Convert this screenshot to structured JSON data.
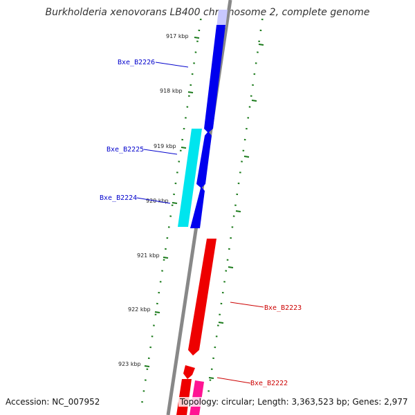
{
  "title": "Burkholderia xenovorans LB400 chromosome 2, complete genome",
  "ticks": [
    {
      "label": "917 kbp"
    },
    {
      "label": "918 kbp"
    },
    {
      "label": "919 kbp"
    },
    {
      "label": "920 kbp"
    },
    {
      "label": "921 kbp"
    },
    {
      "label": "922 kbp"
    },
    {
      "label": "923 kbp"
    }
  ],
  "genes": [
    {
      "label": "Bxe_B2226",
      "color": "#0000cc",
      "fill": "#0000ee"
    },
    {
      "label": "Bxe_B2225",
      "color": "#0000cc",
      "fill": "#00e5ee"
    },
    {
      "label": "Bxe_B2224",
      "color": "#0000cc",
      "fill": "#0000ee"
    },
    {
      "label": "Bxe_B2223",
      "color": "#cc0000",
      "fill": "#ee0000"
    },
    {
      "label": "Bxe_B2222",
      "color": "#cc0000",
      "fill": "#ee0000"
    }
  ],
  "footer": {
    "accession": "Accession: NC_007952",
    "summary": "Topology: circular; Length: 3,363,523 bp; Genes: 2,977"
  },
  "colors": {
    "backbone": "#888888",
    "tick": "#1a7a1a",
    "plus_strand": "#0000ee",
    "plus_strand_alt": "#00e5ee",
    "minus_strand": "#ee0000",
    "minus_strand_alt": "#ff1493"
  }
}
